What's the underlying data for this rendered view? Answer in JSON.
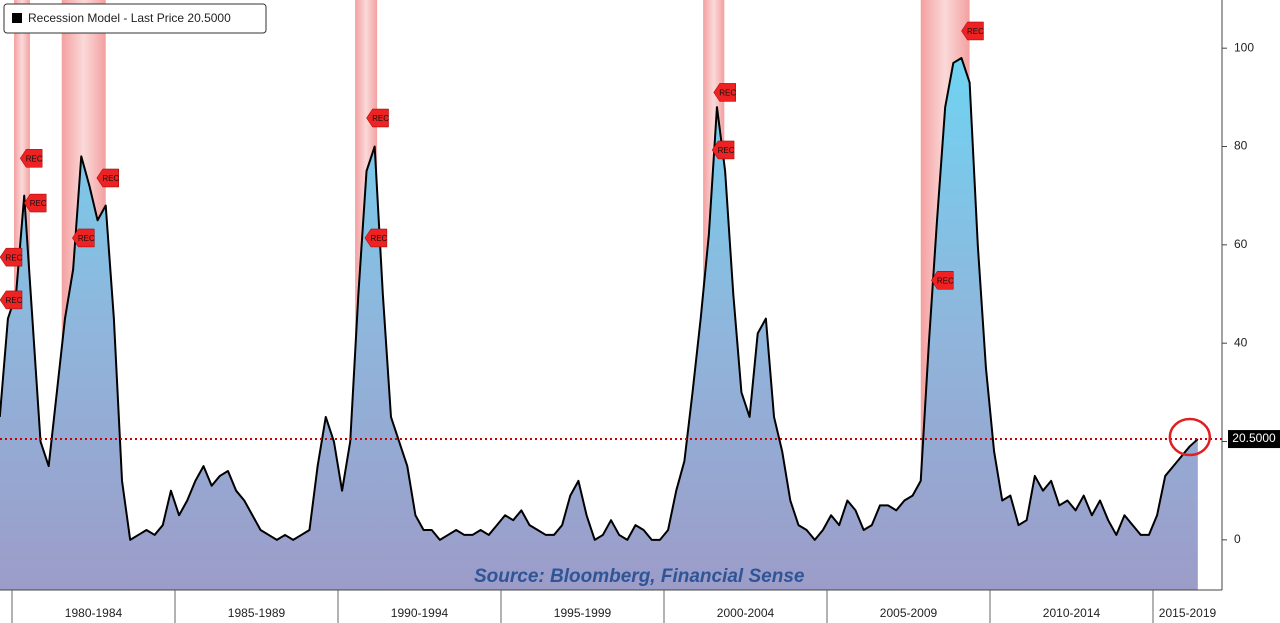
{
  "chart_data": {
    "type": "area",
    "legend": "Recession Model - Last Price 20.5000",
    "source": "Source: Bloomberg, Financial Sense",
    "last_label": "20.5000",
    "rec_label": "REC",
    "ylim": [
      -10.2,
      109.8
    ],
    "yticks": [
      0,
      20,
      40,
      60,
      80,
      100
    ],
    "periods": [
      {
        "label": null,
        "values": [
          25,
          45
        ]
      },
      {
        "label": "1980-1984",
        "values": [
          50,
          70,
          45,
          20,
          15,
          30,
          45,
          55,
          78,
          72,
          65,
          68,
          45,
          12,
          0,
          1,
          2,
          1,
          3,
          10
        ]
      },
      {
        "label": "1985-1989",
        "values": [
          5,
          8,
          12,
          15,
          11,
          13,
          14,
          10,
          8,
          5,
          2,
          1,
          0,
          1,
          0,
          1,
          2,
          15,
          25,
          20
        ]
      },
      {
        "label": "1990-1994",
        "values": [
          10,
          20,
          50,
          75,
          80,
          50,
          25,
          20,
          15,
          5,
          2,
          2,
          0,
          1,
          2,
          1,
          1,
          2,
          1,
          3
        ]
      },
      {
        "label": "1995-1999",
        "values": [
          5,
          4,
          6,
          3,
          2,
          1,
          1,
          3,
          9,
          12,
          5,
          0,
          1,
          4,
          1,
          0,
          3,
          2,
          0,
          0
        ]
      },
      {
        "label": "2000-2004",
        "values": [
          2,
          10,
          16,
          30,
          45,
          62,
          88,
          75,
          50,
          30,
          25,
          42,
          45,
          25,
          18,
          8,
          3,
          2,
          0,
          2
        ]
      },
      {
        "label": "2005-2009",
        "values": [
          5,
          3,
          8,
          6,
          2,
          3,
          7,
          7,
          6,
          8,
          9,
          12,
          40,
          65,
          88,
          97,
          98,
          93,
          60,
          35
        ]
      },
      {
        "label": "2010-2014",
        "values": [
          18,
          8,
          9,
          3,
          4,
          13,
          10,
          12,
          7,
          8,
          6,
          9,
          5,
          8,
          4,
          1,
          5,
          3,
          1,
          1
        ]
      },
      {
        "label": "2015-2019",
        "values": [
          5,
          13,
          15,
          17,
          19,
          20.5
        ]
      }
    ],
    "recessions": [
      [
        1.75,
        3.7
      ],
      [
        7.6,
        13.0
      ],
      [
        43.6,
        46.3
      ],
      [
        86.3,
        88.9
      ],
      [
        113.0,
        119.0
      ]
    ],
    "rec_flags": [
      [
        0,
        57.5
      ],
      [
        0,
        48.8
      ],
      [
        2.5,
        77.6
      ],
      [
        3,
        68.5
      ],
      [
        8.9,
        61.4
      ],
      [
        11.9,
        73.6
      ],
      [
        45,
        85.8
      ],
      [
        44.8,
        61.4
      ],
      [
        87.6,
        91
      ],
      [
        87.4,
        79.3
      ],
      [
        114.3,
        52.8
      ],
      [
        118,
        103.5
      ]
    ],
    "line_color": "#000000",
    "reference_color": "#cc0000",
    "recession_color": "#f08080",
    "flag_color": "#ee2222"
  }
}
